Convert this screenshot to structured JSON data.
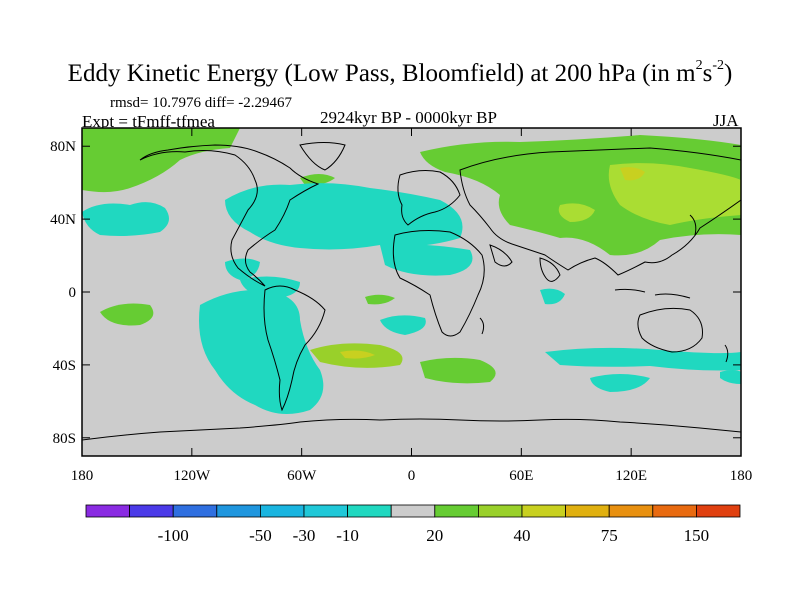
{
  "header": {
    "title": "Eddy Kinetic Energy (Low Pass, Bloomfield) at 200 hPa (in m",
    "title_sup1": "2",
    "title_mid": "s",
    "title_sup2": "-2",
    "title_end": ")",
    "stats": "rmsd= 10.7976  diff= -2.29467",
    "experiment": "Expt = tFmff-tfmea",
    "period": "2924kyr BP - 0000kyr BP",
    "season": "JJA"
  },
  "map": {
    "projection": "cylindrical equidistant",
    "lon_range": [
      -180,
      180
    ],
    "lat_range": [
      -90,
      90
    ],
    "background_color": "#cccccc",
    "x_ticks": [
      "180",
      "120W",
      "60W",
      "0",
      "60E",
      "120E",
      "180"
    ],
    "y_ticks": [
      "80N",
      "40N",
      "0",
      "40S",
      "80S"
    ],
    "contour_regions": [
      {
        "level": "-10",
        "color": "#20d8c0",
        "desc": "North Atlantic / North America storm region"
      },
      {
        "level": "-10",
        "color": "#20d8c0",
        "desc": "South Pacific / Southern Ocean patches"
      },
      {
        "level": "20",
        "color": "#66cc33",
        "desc": "Northern Eurasia / Arctic"
      },
      {
        "level": "40",
        "color": "#aadd33",
        "desc": "Siberia / central Eurasia maxima"
      }
    ]
  },
  "colorbar": {
    "colors": [
      "#8a2be2",
      "#4b3ae8",
      "#2f6fe0",
      "#1f96de",
      "#1ab5e0",
      "#20c8d8",
      "#20d8c0",
      "#cccccc",
      "#66cc33",
      "#99d02a",
      "#c8d020",
      "#e0b010",
      "#e89010",
      "#e86a10",
      "#e04010"
    ],
    "labels": [
      "-100",
      "-50",
      "-30",
      "-10",
      "20",
      "40",
      "75",
      "150"
    ]
  }
}
